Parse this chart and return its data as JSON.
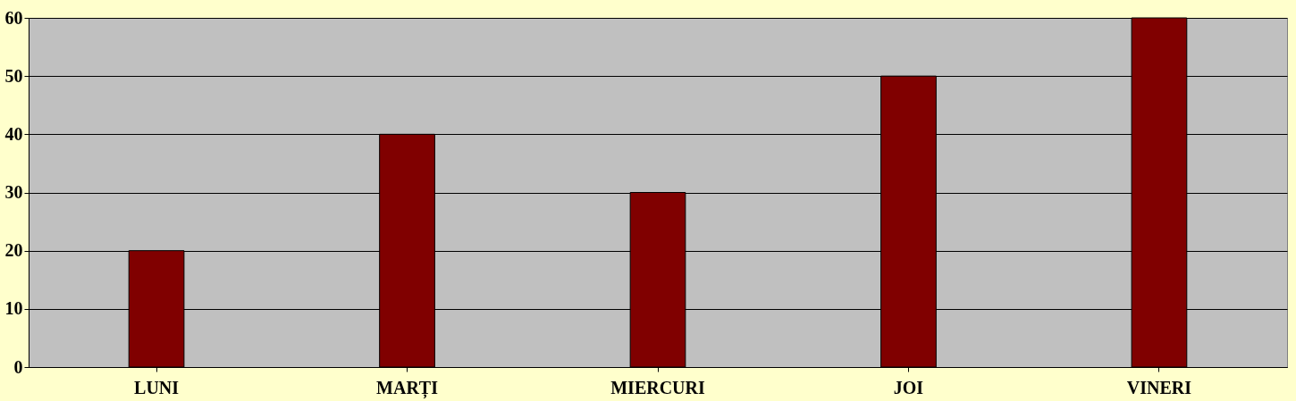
{
  "chart_data": {
    "type": "bar",
    "categories": [
      "LUNI",
      "MARȚI",
      "MIERCURI",
      "JOI",
      "VINERI"
    ],
    "values": [
      20,
      40,
      30,
      50,
      60
    ],
    "color": "#800000",
    "ylim": [
      0,
      60
    ],
    "yticks": [
      0,
      10,
      20,
      30,
      40,
      50,
      60
    ],
    "grid": "y"
  }
}
